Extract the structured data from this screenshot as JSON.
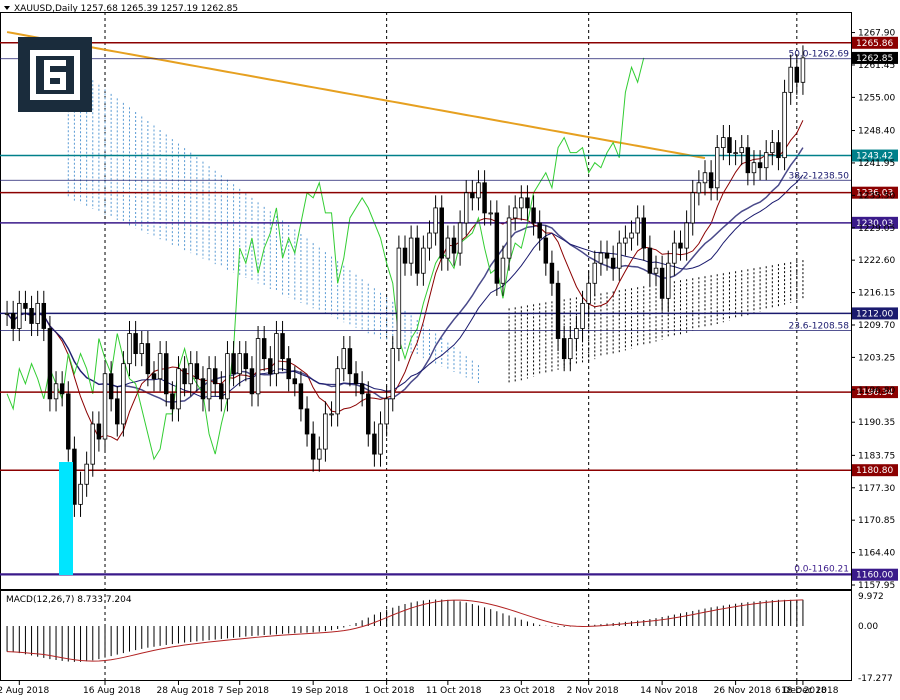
{
  "header": {
    "symbol_line": "XAUUSD,Daily  1257.68 1265.39 1257.19 1262.85"
  },
  "logo": {
    "icon": "ebc-logo-icon",
    "bg_color": "#1a2c3c"
  },
  "colors": {
    "up_candle": "#ffffff",
    "down_candle": "#000000",
    "kijun": "#8b0000",
    "tenkan": "#1a1a6e",
    "chikou": "#32cd32",
    "ma_orange": "#e6a020",
    "ma_slate": "#4a4a8a",
    "kumo_blue": "#5a9bd4",
    "kumo_dark": "#000000",
    "highlight_cyan": "#00e5ff"
  },
  "levels": [
    {
      "value": 1265.86,
      "label": "1265.86",
      "color": "#8b0000",
      "style": "solid"
    },
    {
      "value": 1262.69,
      "label": "50.0-1262.69",
      "color": "#1a1a6e",
      "style": "fib"
    },
    {
      "value": 1243.42,
      "label": "1243.42",
      "color": "#00808a",
      "style": "solid"
    },
    {
      "value": 1238.5,
      "label": "38.2-1238.50",
      "color": "#1a1a6e",
      "style": "fib"
    },
    {
      "value": 1236.03,
      "label": "1236.03",
      "color": "#8b0000",
      "style": "solid"
    },
    {
      "value": 1230.03,
      "label": "1230.03",
      "color": "#3a1a8a",
      "style": "solid"
    },
    {
      "value": 1212.0,
      "label": "1212.00",
      "color": "#1a1a6e",
      "style": "solid"
    },
    {
      "value": 1208.58,
      "label": "23.6-1208.58",
      "color": "#1a1a6e",
      "style": "fib"
    },
    {
      "value": 1196.34,
      "label": "1196.34",
      "color": "#8b0000",
      "style": "solid"
    },
    {
      "value": 1180.8,
      "label": "1180.80",
      "color": "#8b0000",
      "style": "solid"
    },
    {
      "value": 1160.21,
      "label": "0.0-1160.21",
      "color": "#3a1a8a",
      "style": "fib"
    },
    {
      "value": 1160.0,
      "label": "1160.00",
      "color": "#3a1a8a",
      "style": "solid"
    }
  ],
  "current_price": {
    "value": 1262.85,
    "label": "1262.85"
  },
  "macd": {
    "title": "MACD(12,26,7) 8.733 7.204",
    "axis": [
      "9.972",
      "0.00",
      "-17.277"
    ]
  },
  "chart_data": {
    "type": "candlestick",
    "symbol": "XAUUSD",
    "timeframe": "Daily",
    "ylim": [
      1157.95,
      1270.0
    ],
    "y_ticks": [
      "1267.90",
      "1261.45",
      "1255.00",
      "1248.40",
      "1241.95",
      "1235.50",
      "1229.05",
      "1222.60",
      "1216.15",
      "1209.70",
      "1203.25",
      "1196.80",
      "1190.35",
      "1183.75",
      "1177.30",
      "1170.85",
      "1164.40",
      "1157.95"
    ],
    "x_ticks": [
      "2 Aug 2018",
      "16 Aug 2018",
      "28 Aug 2018",
      "7 Sep 2018",
      "19 Sep 2018",
      "1 Oct 2018",
      "11 Oct 2018",
      "23 Oct 2018",
      "2 Nov 2018",
      "14 Nov 2018",
      "26 Nov 2018",
      "6 Dec 2018",
      "18 Dec 2018"
    ],
    "grid_dates": [
      "16 Aug 2018",
      "1 Oct 2018",
      "2 Nov 2018",
      "6 Dec 2018"
    ],
    "closes": [
      1212,
      1209,
      1214,
      1213,
      1210,
      1214,
      1209,
      1195,
      1198,
      1196,
      1185,
      1174,
      1178,
      1182,
      1190,
      1187,
      1200,
      1195,
      1190,
      1202,
      1208,
      1204,
      1206,
      1200,
      1199,
      1204,
      1196,
      1193,
      1201,
      1198,
      1202,
      1199,
      1195,
      1201,
      1198,
      1195,
      1204,
      1200,
      1204,
      1201,
      1196,
      1207,
      1203,
      1200,
      1208,
      1203,
      1199,
      1198,
      1193,
      1188,
      1183,
      1185,
      1192,
      1192,
      1201,
      1205,
      1200,
      1198,
      1196,
      1188,
      1184,
      1190,
      1195,
      1205,
      1225,
      1222,
      1227,
      1220,
      1225,
      1228,
      1233,
      1223,
      1227,
      1224,
      1230,
      1236,
      1235,
      1238,
      1232,
      1232,
      1218,
      1223,
      1231,
      1233,
      1235,
      1233,
      1230,
      1227,
      1222,
      1218,
      1207,
      1203,
      1207,
      1209,
      1214,
      1218,
      1222,
      1224,
      1223,
      1221,
      1226,
      1227,
      1228,
      1231,
      1225,
      1220,
      1221,
      1215,
      1222,
      1226,
      1225,
      1230,
      1236,
      1238,
      1240,
      1237,
      1245,
      1247,
      1244,
      1244,
      1245,
      1240,
      1242,
      1241,
      1244,
      1246,
      1243,
      1256,
      1261,
      1258,
      1262.85
    ],
    "macd_hist": [
      -8.5,
      -8.7,
      -9.0,
      -9.4,
      -9.8,
      -10.2,
      -10.6,
      -11.0,
      -11.3,
      -11.6,
      -11.8,
      -11.9,
      -11.9,
      -11.7,
      -11.4,
      -11.0,
      -10.5,
      -10.0,
      -9.5,
      -9.0,
      -8.5,
      -8.0,
      -7.6,
      -7.2,
      -6.9,
      -6.6,
      -6.3,
      -6.0,
      -5.8,
      -5.5,
      -5.3,
      -5.1,
      -4.9,
      -4.7,
      -4.5,
      -4.3,
      -4.1,
      -3.9,
      -3.7,
      -3.5,
      -3.3,
      -3.2,
      -3.0,
      -2.9,
      -2.8,
      -2.6,
      -2.5,
      -2.4,
      -2.3,
      -2.2,
      -2.1,
      -1.9,
      -1.7,
      -1.4,
      -1.0,
      -0.5,
      0.2,
      1.0,
      1.9,
      2.8,
      3.8,
      4.6,
      5.4,
      6.1,
      6.7,
      7.3,
      7.8,
      8.2,
      8.5,
      8.7,
      8.8,
      8.8,
      8.7,
      8.5,
      8.2,
      7.8,
      7.3,
      6.8,
      6.2,
      5.6,
      4.9,
      4.2,
      3.5,
      2.8,
      2.1,
      1.5,
      0.9,
      0.4,
      0.1,
      -0.2,
      -0.3,
      -0.3,
      -0.2,
      -0.1,
      0.0,
      0.2,
      0.4,
      0.6,
      0.8,
      1.0,
      1.2,
      1.4,
      1.6,
      1.8,
      2.0,
      2.3,
      2.6,
      3.0,
      3.4,
      3.8,
      4.2,
      4.6,
      5.0,
      5.4,
      5.8,
      6.2,
      6.5,
      6.8,
      7.1,
      7.4,
      7.7,
      7.9,
      8.1,
      8.3,
      8.5,
      8.6,
      8.7,
      8.7,
      8.7,
      8.73,
      8.733
    ]
  }
}
